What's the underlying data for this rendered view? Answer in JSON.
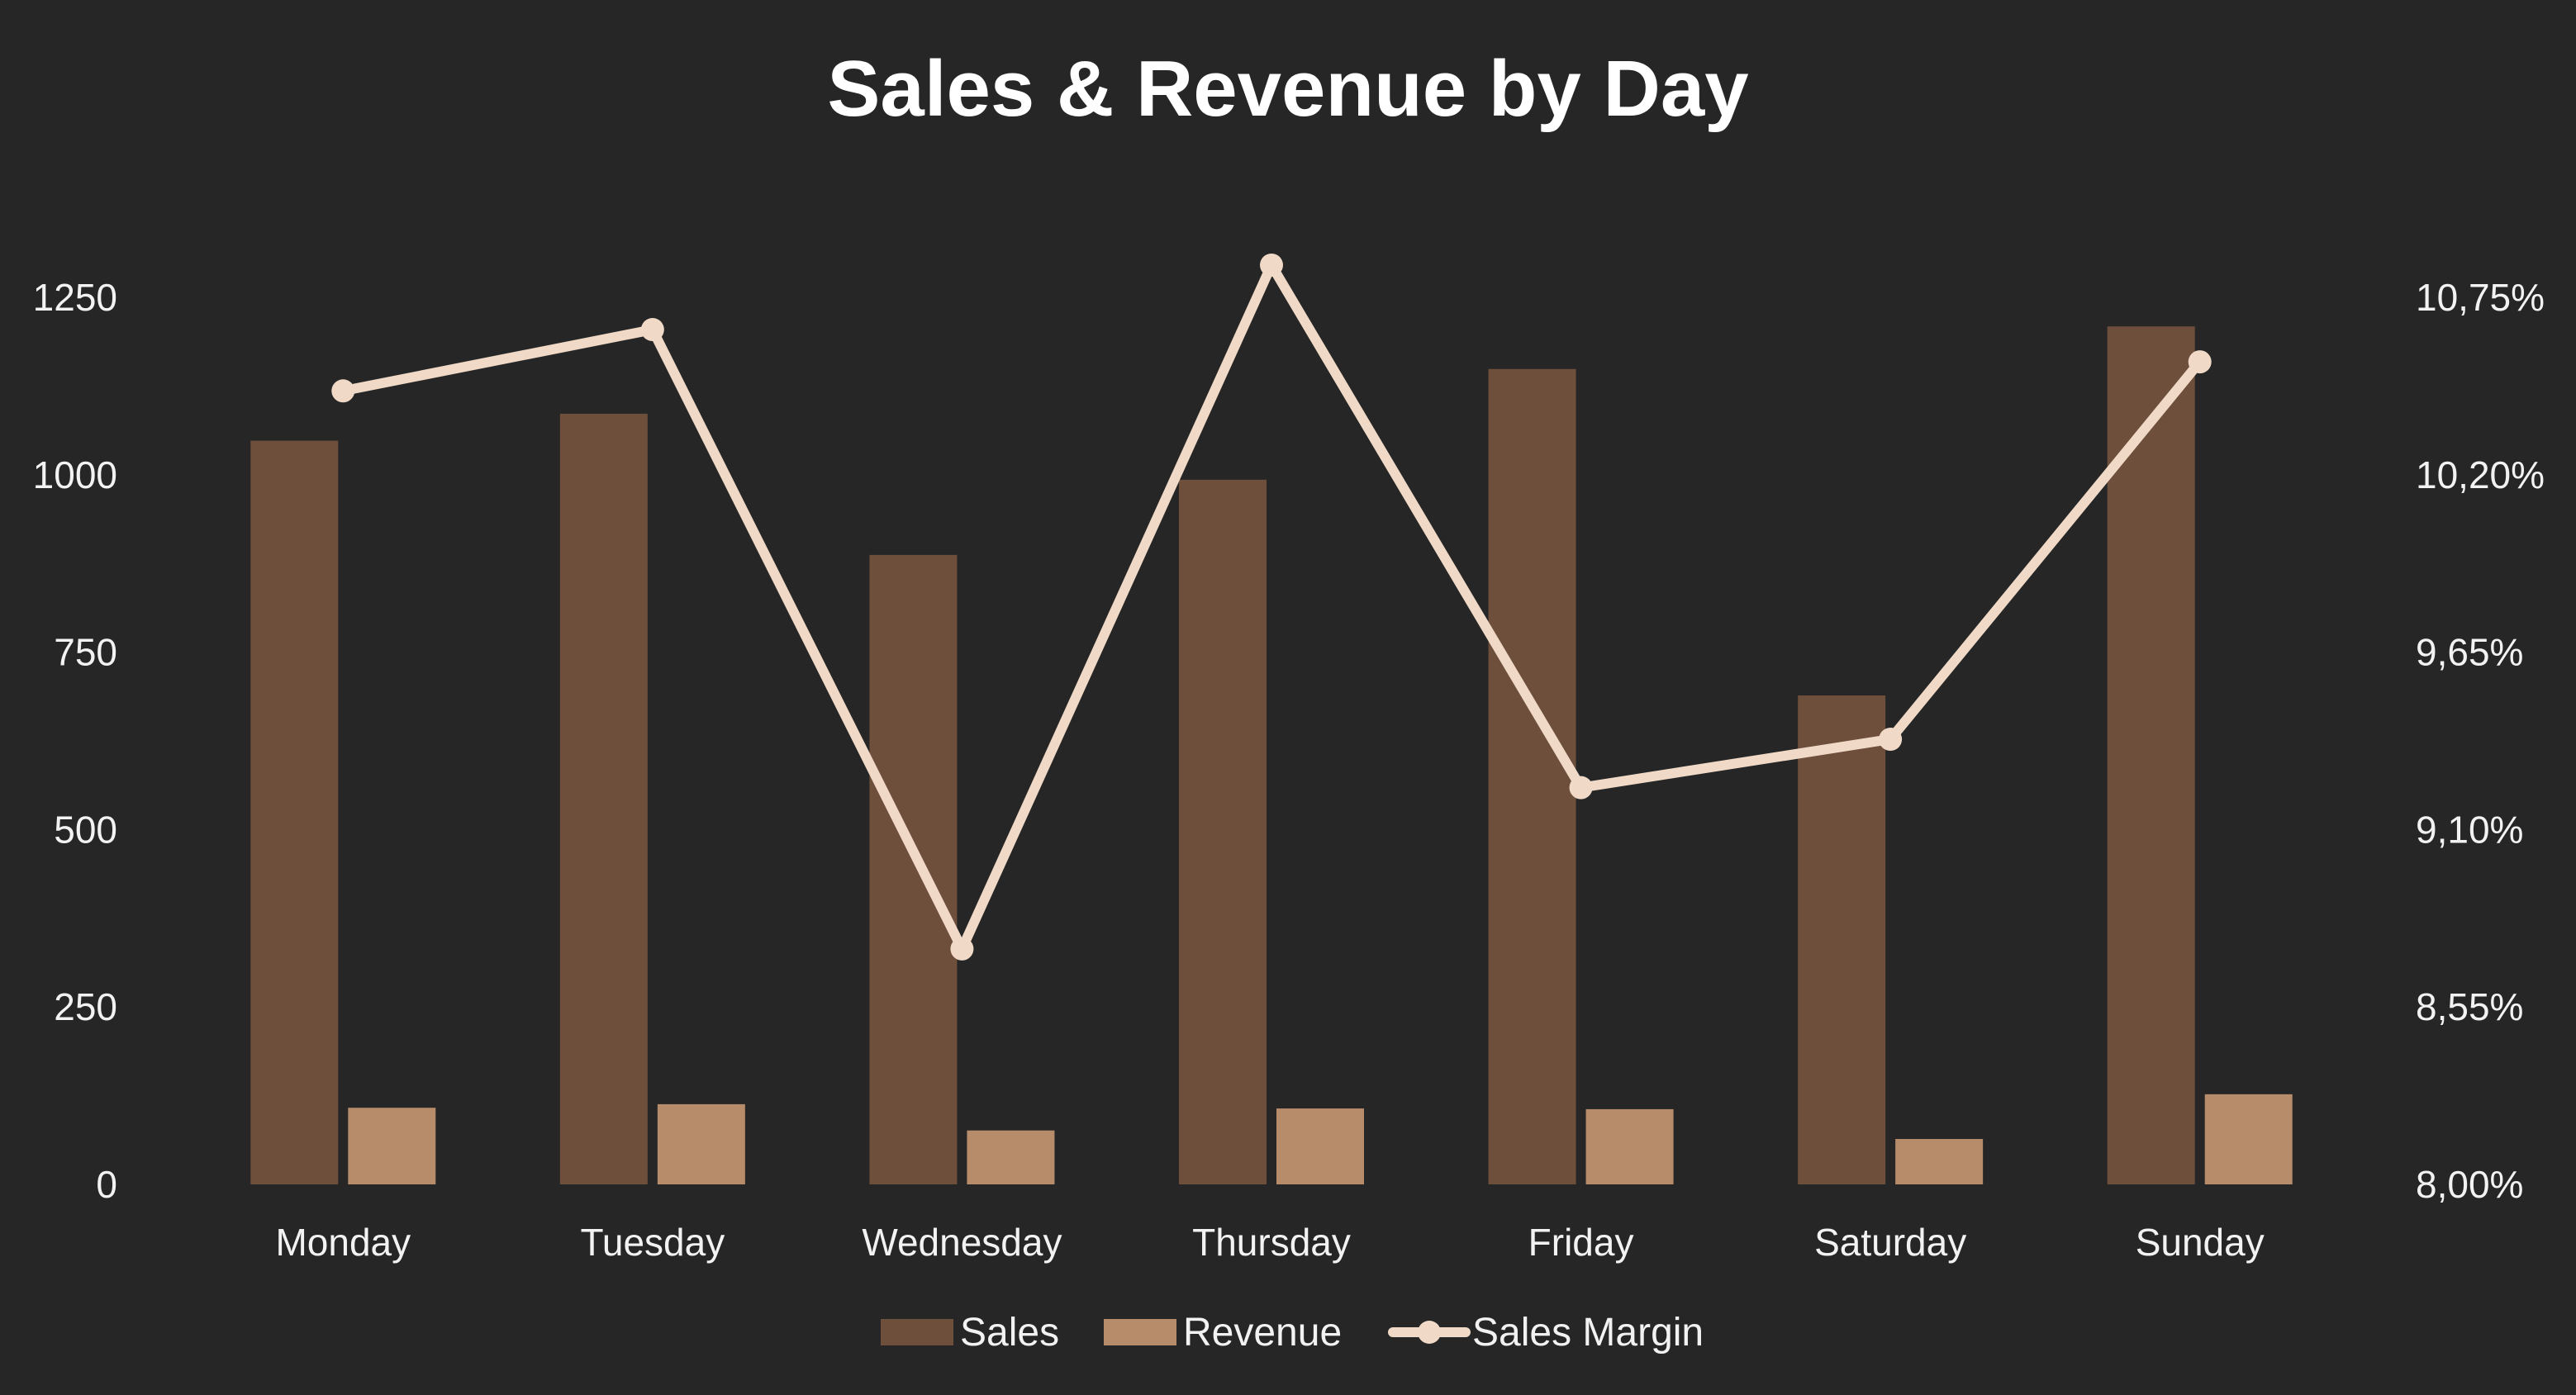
{
  "chart_data": {
    "type": "bar",
    "title": "Sales & Revenue by Day",
    "categories": [
      "Monday",
      "Tuesday",
      "Wednesday",
      "Thursday",
      "Friday",
      "Saturday",
      "Sunday"
    ],
    "series": [
      {
        "name": "Sales",
        "kind": "bar",
        "axis": "left",
        "color": "#6d4f3c",
        "values": [
          1048,
          1086,
          887,
          993,
          1149,
          689,
          1209
        ]
      },
      {
        "name": "Revenue",
        "kind": "bar",
        "axis": "left",
        "color": "#b78c6b",
        "values": [
          108,
          113,
          76,
          107,
          106,
          64,
          127
        ]
      },
      {
        "name": "Sales Margin",
        "kind": "line",
        "axis": "right",
        "color": "#f0dac7",
        "values": [
          10.46,
          10.65,
          8.73,
          10.85,
          9.23,
          9.38,
          10.55
        ]
      }
    ],
    "y_left": {
      "min": 0,
      "max": 1250,
      "ticks": [
        "0",
        "250",
        "500",
        "750",
        "1000",
        "1250"
      ]
    },
    "y_right": {
      "min": 8.0,
      "max": 10.75,
      "ticks": [
        "8,00%",
        "8,55%",
        "9,10%",
        "9,65%",
        "10,20%",
        "10,75%"
      ]
    },
    "xlabel": "",
    "ylabel": "",
    "grid": false,
    "legend": "bottom-center",
    "background": "#262626"
  }
}
